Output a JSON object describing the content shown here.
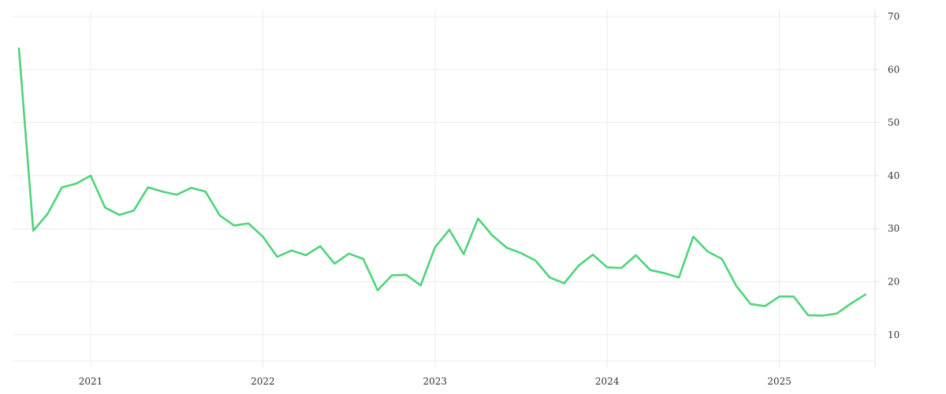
{
  "chart_data": {
    "type": "line",
    "title": "",
    "xlabel": "",
    "ylabel": "",
    "x_ticks": [
      "2021",
      "2022",
      "2023",
      "2024",
      "2025"
    ],
    "y_ticks": [
      10,
      20,
      30,
      40,
      50,
      60,
      70
    ],
    "ylim": [
      5,
      71
    ],
    "xlim": [
      "2020-07-15",
      "2025-07-15"
    ],
    "y_axis_position": "right",
    "grid": true,
    "legend": "none",
    "colors": {
      "line": "#4fd47a",
      "grid": "#ececec",
      "text": "#333333"
    },
    "series": [
      {
        "x": [
          "2020-08",
          "2020-09",
          "2020-10",
          "2020-11",
          "2020-12",
          "2021-01",
          "2021-02",
          "2021-03",
          "2021-04",
          "2021-05",
          "2021-06",
          "2021-07",
          "2021-08",
          "2021-09",
          "2021-10",
          "2021-11",
          "2021-12",
          "2022-01",
          "2022-02",
          "2022-03",
          "2022-04",
          "2022-05",
          "2022-06",
          "2022-07",
          "2022-08",
          "2022-09",
          "2022-10",
          "2022-11",
          "2022-12",
          "2023-01",
          "2023-02",
          "2023-03",
          "2023-04",
          "2023-05",
          "2023-06",
          "2023-07",
          "2023-08",
          "2023-09",
          "2023-10",
          "2023-11",
          "2023-12",
          "2024-01",
          "2024-02",
          "2024-03",
          "2024-04",
          "2024-05",
          "2024-06",
          "2024-07",
          "2024-08",
          "2024-09",
          "2024-10",
          "2024-11",
          "2024-12",
          "2025-01",
          "2025-02",
          "2025-03",
          "2025-04",
          "2025-05",
          "2025-06",
          "2025-07"
        ],
        "values": [
          64,
          29.6,
          32.8,
          37.8,
          38.5,
          40,
          34,
          32.6,
          33.4,
          37.8,
          37,
          36.4,
          37.7,
          37,
          32.5,
          30.6,
          31,
          28.5,
          24.7,
          25.9,
          25,
          26.7,
          23.4,
          25.3,
          24.3,
          18.4,
          21.2,
          21.3,
          19.3,
          26.5,
          29.8,
          25.2,
          31.9,
          28.7,
          26.4,
          25.4,
          24,
          20.8,
          19.7,
          23,
          25.1,
          22.7,
          22.6,
          25,
          22.2,
          21.6,
          20.8,
          28.5,
          25.7,
          24.3,
          19.2,
          15.8,
          15.4,
          17.2,
          17.2,
          13.7,
          13.6,
          14,
          15.9,
          17.6
        ]
      }
    ]
  }
}
